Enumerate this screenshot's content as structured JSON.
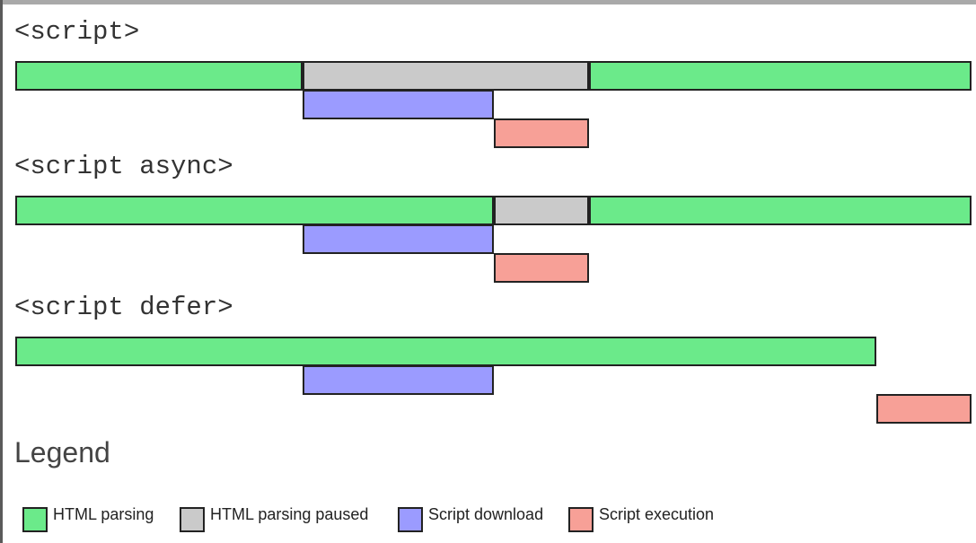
{
  "colors": {
    "parsing": "#6bea8a",
    "paused": "#cacaca",
    "download": "#9b9bff",
    "execution": "#f7a097"
  },
  "sections": [
    {
      "title": "<script>",
      "bars": [
        {
          "kind": "parsing",
          "start": 0,
          "end": 30
        },
        {
          "kind": "paused",
          "start": 30,
          "end": 60
        },
        {
          "kind": "parsing",
          "start": 60,
          "end": 100
        },
        {
          "kind": "download",
          "start": 30,
          "end": 50
        },
        {
          "kind": "execution",
          "start": 50,
          "end": 60
        }
      ]
    },
    {
      "title": "<script async>",
      "bars": [
        {
          "kind": "parsing",
          "start": 0,
          "end": 50
        },
        {
          "kind": "paused",
          "start": 50,
          "end": 60
        },
        {
          "kind": "parsing",
          "start": 60,
          "end": 100
        },
        {
          "kind": "download",
          "start": 30,
          "end": 50
        },
        {
          "kind": "execution",
          "start": 50,
          "end": 60
        }
      ]
    },
    {
      "title": "<script defer>",
      "bars": [
        {
          "kind": "parsing",
          "start": 0,
          "end": 90
        },
        {
          "kind": "download",
          "start": 30,
          "end": 50
        },
        {
          "kind": "execution",
          "start": 90,
          "end": 100
        }
      ]
    }
  ],
  "legend": {
    "title": "Legend",
    "items": [
      {
        "kind": "parsing",
        "label": "HTML parsing"
      },
      {
        "kind": "paused",
        "label": "HTML parsing paused"
      },
      {
        "kind": "download",
        "label": "Script download"
      },
      {
        "kind": "execution",
        "label": "Script execution"
      }
    ]
  }
}
